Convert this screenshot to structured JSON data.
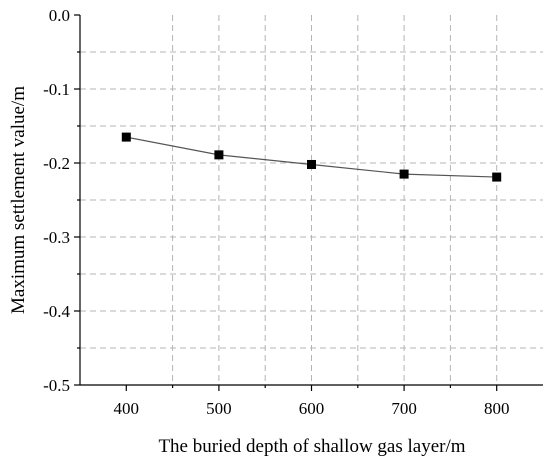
{
  "chart_data": {
    "type": "line",
    "title": "",
    "xlabel": "The buried depth of shallow gas layer/m",
    "ylabel": "Maximum settlement value/m",
    "xlim": [
      350,
      850
    ],
    "ylim": [
      -0.5,
      0.0
    ],
    "x_ticks": [
      400,
      500,
      600,
      700,
      800
    ],
    "x_tick_labels": [
      "400",
      "500",
      "600",
      "700",
      "800"
    ],
    "y_ticks": [
      0.0,
      -0.1,
      -0.2,
      -0.3,
      -0.4,
      -0.5
    ],
    "y_tick_labels": [
      "0.0",
      "-0.1",
      "-0.2",
      "-0.3",
      "-0.4",
      "-0.5"
    ],
    "grid": true,
    "series": [
      {
        "marker": "square",
        "x": [
          400,
          500,
          600,
          700,
          800
        ],
        "values": [
          -0.165,
          -0.189,
          -0.202,
          -0.215,
          -0.219
        ]
      }
    ]
  }
}
